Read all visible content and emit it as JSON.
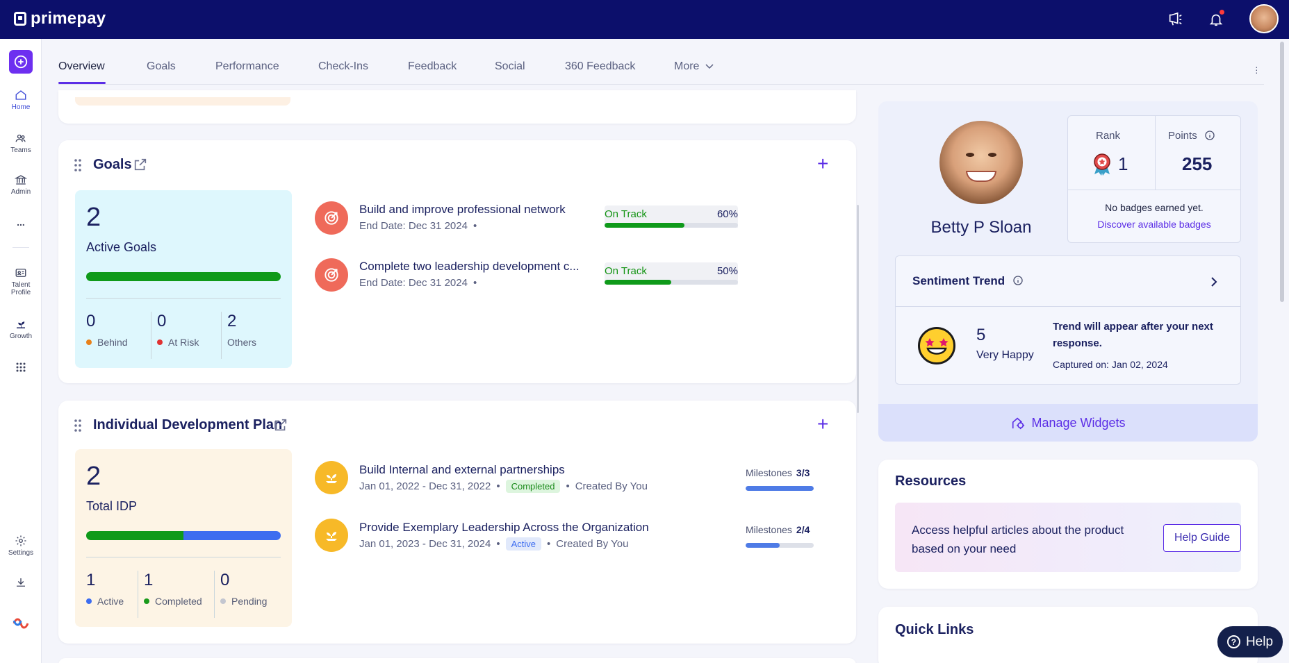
{
  "app": {
    "brand": "primepay"
  },
  "rail": {
    "home": "Home",
    "teams": "Teams",
    "admin": "Admin",
    "more": "...",
    "talent_profile_1": "Talent",
    "talent_profile_2": "Profile",
    "growth": "Growth",
    "settings": "Settings"
  },
  "tabs": [
    {
      "label": "Overview"
    },
    {
      "label": "Goals"
    },
    {
      "label": "Performance"
    },
    {
      "label": "Check-Ins"
    },
    {
      "label": "Feedback"
    },
    {
      "label": "Social"
    },
    {
      "label": "360 Feedback"
    },
    {
      "label": "More"
    }
  ],
  "goals": {
    "title": "Goals",
    "active_count": "2",
    "active_label": "Active Goals",
    "stats": [
      {
        "value": "0",
        "label": "Behind",
        "color": "#e8811a"
      },
      {
        "value": "0",
        "label": "At Risk",
        "color": "#e03232"
      },
      {
        "value": "2",
        "label": "Others",
        "color": ""
      }
    ],
    "items": [
      {
        "title": "Build and improve professional network",
        "sub": "End Date: Dec 31 2024",
        "status": "On Track",
        "percent": "60%",
        "progress": 60
      },
      {
        "title": "Complete two leadership development c...",
        "sub": "End Date: Dec 31 2024",
        "status": "On Track",
        "percent": "50%",
        "progress": 50
      }
    ]
  },
  "idp": {
    "title": "Individual Development Plan",
    "total_count": "2",
    "total_label": "Total IDP",
    "stats": [
      {
        "value": "1",
        "label": "Active",
        "color": "#3d6df0"
      },
      {
        "value": "1",
        "label": "Completed",
        "color": "#1a9a1a"
      },
      {
        "value": "0",
        "label": "Pending",
        "color": "#c3c6d0"
      }
    ],
    "items": [
      {
        "title": "Build Internal and external partnerships",
        "dates": "Jan 01, 2022 - Dec 31, 2022",
        "status": "Completed",
        "created": "Created By You",
        "milestones_label": "Milestones",
        "milestones": "3/3",
        "progress": 100
      },
      {
        "title": "Provide Exemplary Leadership Across the Organization",
        "dates": "Jan 01, 2023 - Dec 31, 2024",
        "status": "Active",
        "created": "Created By You",
        "milestones_label": "Milestones",
        "milestones": "2/4",
        "progress": 50
      }
    ]
  },
  "profile": {
    "name": "Betty P Sloan",
    "rank_label": "Rank",
    "rank": "1",
    "points_label": "Points",
    "points": "255",
    "badges_note": "No badges earned yet.",
    "badges_link": "Discover available badges"
  },
  "sentiment": {
    "title": "Sentiment Trend",
    "score": "5",
    "score_label": "Very Happy",
    "trend_text_1": "Trend will appear after your next",
    "trend_text_2": "response.",
    "captured": "Captured on: Jan 02, 2024"
  },
  "manage_widgets": "Manage Widgets",
  "resources": {
    "title": "Resources",
    "text_1": "Access helpful articles about the product",
    "text_2": "based on your need",
    "button": "Help Guide"
  },
  "quick_links": {
    "title": "Quick Links"
  },
  "help_button": "Help"
}
